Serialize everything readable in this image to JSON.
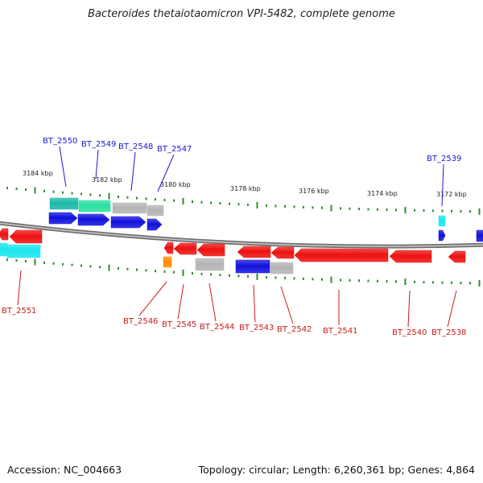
{
  "title": "Bacteroides thetaiotaomicron VPI-5482, complete genome",
  "footer": {
    "accession": "Accession: NC_004663",
    "summary": "Topology: circular; Length: 6,260,361 bp; Genes: 4,864"
  },
  "scale": {
    "tick_labels": [
      "3184 kbp",
      "3182 kbp",
      "3180 kbp",
      "3178 kbp",
      "3176 kbp",
      "3174 kbp",
      "3172 kbp"
    ]
  },
  "colors": {
    "backbone": "#8a8a8a",
    "tick": "#2e8b2e",
    "top_label": "#1a1acc",
    "bottom_label": "#cc1a1a",
    "red": "#ee1111",
    "blue": "#1111dd",
    "gray": "#b4b4b4",
    "cyan": "#19e6ee",
    "teal": "#1ab8a8",
    "green": "#29e0a0",
    "orange": "#ff8c00"
  },
  "genes_top": [
    {
      "label": "BT_2550",
      "color": "teal"
    },
    {
      "label": "BT_2549",
      "color": "green"
    },
    {
      "label": "BT_2548",
      "color": "gray"
    },
    {
      "label": "BT_2547",
      "color": "gray"
    },
    {
      "label": "BT_2539",
      "color": "cyan"
    }
  ],
  "genes_bottom": [
    {
      "label": "BT_2551",
      "color": "red"
    },
    {
      "label": "BT_2546",
      "color": "red"
    },
    {
      "label": "BT_2545",
      "color": "red"
    },
    {
      "label": "BT_2544",
      "color": "red"
    },
    {
      "label": "BT_2543",
      "color": "red"
    },
    {
      "label": "BT_2542",
      "color": "red"
    },
    {
      "label": "BT_2541",
      "color": "red"
    },
    {
      "label": "BT_2540",
      "color": "red"
    },
    {
      "label": "BT_2538",
      "color": "red"
    }
  ]
}
